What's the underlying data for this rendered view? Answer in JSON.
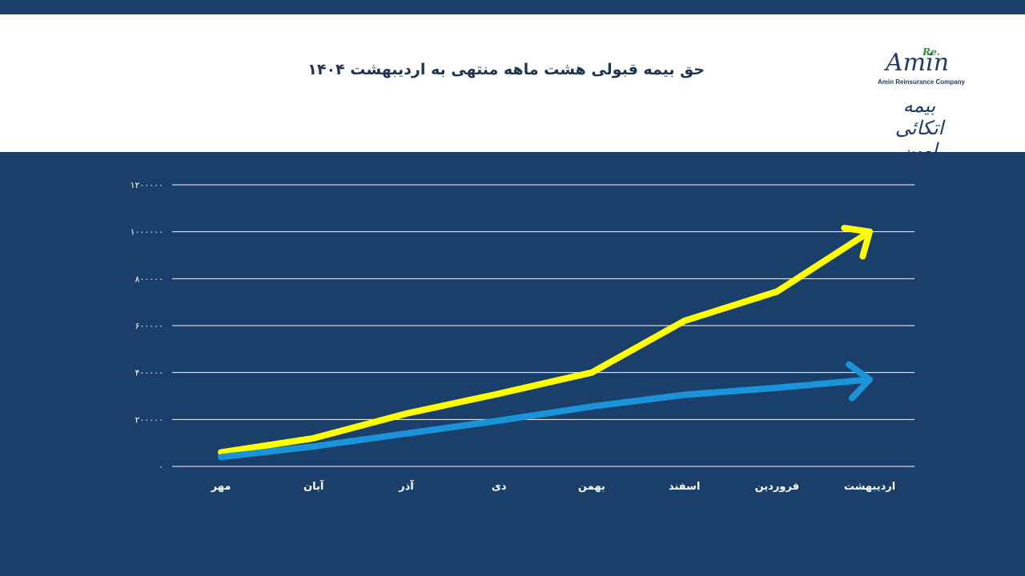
{
  "header": {
    "title": "حق بیمه قبولی هشت ماهه منتهی به اردیبهشت ۱۴۰۴"
  },
  "logo": {
    "brand": "Amin",
    "re": "Re.",
    "company": "Amin Reinsurance Company",
    "persian": "بیمه اتکائی امین"
  },
  "colors": {
    "background": "#1b3f6b",
    "header_bg": "#ffffff",
    "series_yellow": "#ffff00",
    "series_blue": "#1a93d8",
    "gridline": "#ffffff"
  },
  "chart_data": {
    "type": "line",
    "title": "حق بیمه قبولی هشت ماهه منتهی به اردیبهشت ۱۴۰۴",
    "categories": [
      "مهر",
      "آبان",
      "آذر",
      "دی",
      "بهمن",
      "اسفند",
      "فروردین",
      "اردیبهشت"
    ],
    "ylim": [
      0,
      1200000
    ],
    "yticks": [
      0,
      200000,
      400000,
      600000,
      800000,
      1000000,
      1200000
    ],
    "ytick_labels": [
      "۰",
      "۲۰۰۰۰۰",
      "۴۰۰۰۰۰",
      "۶۰۰۰۰۰",
      "۸۰۰۰۰۰",
      "۱۰۰۰۰۰۰",
      "۱۲۰۰۰۰۰"
    ],
    "grid": true,
    "series": [
      {
        "name": "yellow",
        "color": "#ffff00",
        "values": [
          60000,
          120000,
          225000,
          310000,
          400000,
          620000,
          745000,
          1000000
        ]
      },
      {
        "name": "blue",
        "color": "#1a93d8",
        "values": [
          40000,
          85000,
          140000,
          195000,
          255000,
          305000,
          335000,
          370000
        ]
      }
    ]
  }
}
